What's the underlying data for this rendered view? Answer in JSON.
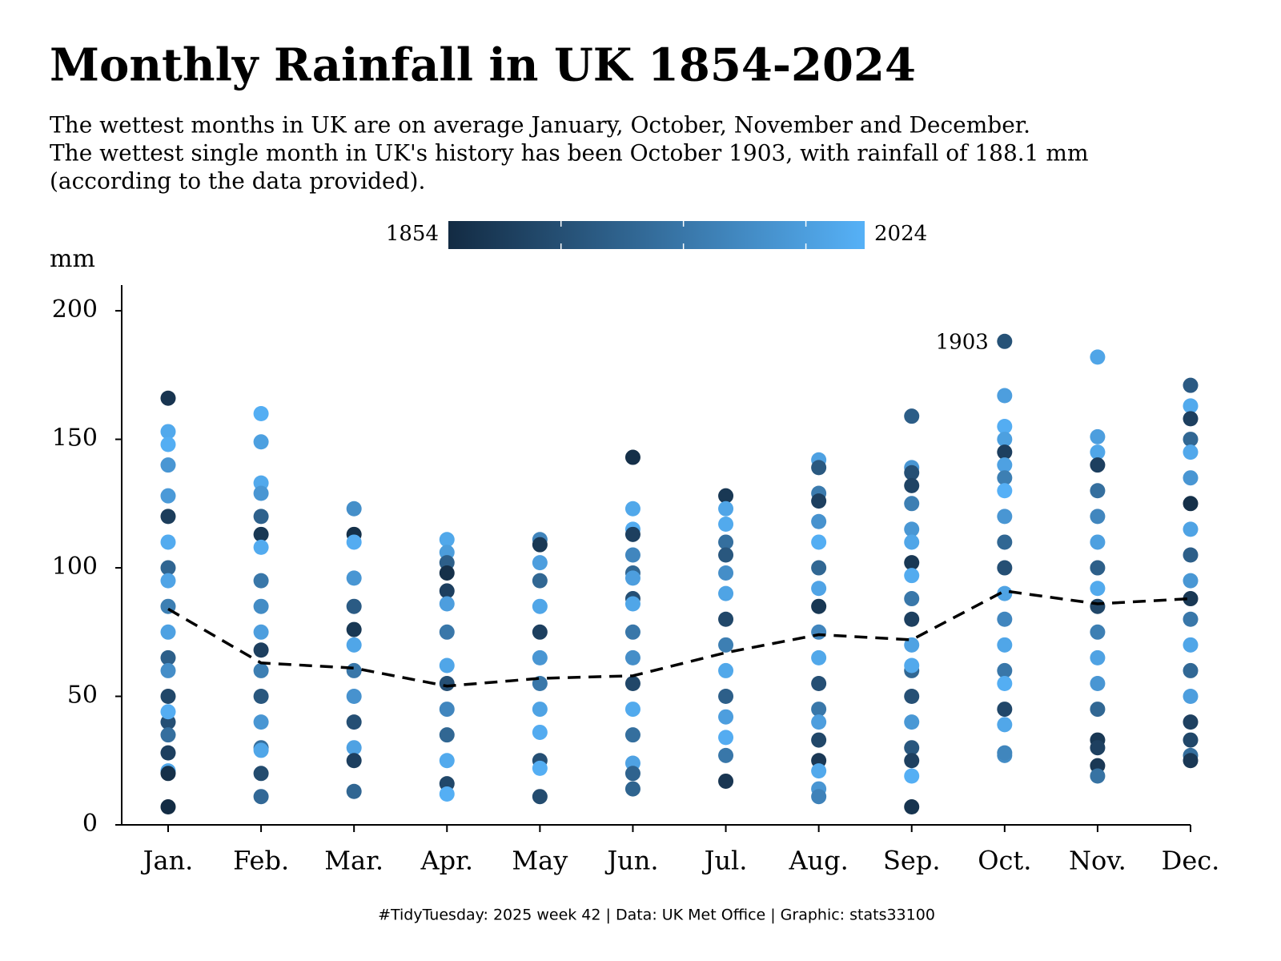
{
  "chart_data": {
    "type": "strip",
    "title": "Monthly Rainfall in UK 1854-2024",
    "subtitle": [
      "The wettest months in UK are on average January, October, November and December.",
      "The wettest single month in UK's history has been October 1903, with rainfall of 188.1 mm",
      "(according to the data provided)."
    ],
    "y_label": "mm",
    "caption": "#TidyTuesday: 2025 week 42  | Data: UK Met Office | Graphic: stats33100",
    "color_scale": {
      "min": 1854,
      "max": 2024,
      "ticks": [
        1900,
        1950,
        2000
      ],
      "colors": [
        "#132b43",
        "#56b1f7"
      ]
    },
    "categories": [
      "Jan.",
      "Feb.",
      "Mar.",
      "Apr.",
      "May",
      "Jun.",
      "Jul.",
      "Aug.",
      "Sep.",
      "Oct.",
      "Nov.",
      "Dec."
    ],
    "ylim": [
      0,
      210
    ],
    "yticks": [
      0,
      50,
      100,
      150,
      200
    ],
    "mean_values": [
      84,
      63,
      61,
      54,
      57,
      58,
      67,
      74,
      72,
      91,
      86,
      88
    ],
    "mean_line_color": "#000000",
    "annotation": {
      "label": "1903",
      "x": "Oct.",
      "y": 188.1
    },
    "points": [
      {
        "years": [
          1866,
          2014,
          2020,
          1990,
          1995,
          1877,
          2016,
          1928,
          2008,
          1960,
          2004,
          1920,
          1980,
          1890,
          1900,
          2019,
          1940,
          1880,
          2010,
          1860,
          1855
        ],
        "values": [
          166,
          153,
          148,
          140,
          128,
          120,
          110,
          100,
          95,
          85,
          75,
          65,
          60,
          50,
          40,
          44,
          35,
          28,
          21,
          20,
          7
        ]
      },
      {
        "years": [
          2020,
          2002,
          2014,
          1990,
          1923,
          1870,
          2016,
          1950,
          1977,
          2000,
          1880,
          1960,
          1910,
          1990,
          1940,
          2010,
          1895,
          1932
        ],
        "values": [
          160,
          149,
          133,
          129,
          120,
          113,
          108,
          95,
          85,
          75,
          68,
          60,
          50,
          40,
          30,
          29,
          20,
          11
        ]
      },
      {
        "years": [
          1981,
          1860,
          2018,
          1990,
          1915,
          1870,
          2010,
          1950,
          1985,
          1900,
          2005,
          1880,
          1929
        ],
        "values": [
          123,
          113,
          110,
          96,
          85,
          76,
          70,
          60,
          50,
          40,
          30,
          25,
          13
        ]
      },
      {
        "years": [
          2012,
          1998,
          1920,
          1860,
          1880,
          2000,
          1950,
          2010,
          1900,
          1970,
          1930,
          2015,
          1890,
          2021
        ],
        "values": [
          111,
          106,
          102,
          98,
          91,
          86,
          75,
          62,
          55,
          45,
          35,
          25,
          16,
          12
        ]
      },
      {
        "years": [
          1967,
          1870,
          2000,
          1930,
          2010,
          1880,
          1990,
          1950,
          2006,
          2017,
          1900,
          2020,
          1896
        ],
        "values": [
          111,
          109,
          102,
          95,
          85,
          75,
          65,
          55,
          45,
          36,
          25,
          22,
          11
        ]
      },
      {
        "years": [
          1860,
          2012,
          2016,
          1880,
          1970,
          1930,
          2000,
          1900,
          2010,
          1950,
          1980,
          1890,
          2015,
          1940,
          2005,
          1925,
          1926
        ],
        "values": [
          143,
          123,
          115,
          113,
          105,
          98,
          96,
          88,
          86,
          75,
          65,
          55,
          45,
          35,
          24,
          20,
          14
        ]
      },
      {
        "years": [
          1870,
          2009,
          2015,
          1940,
          1910,
          1980,
          2007,
          1890,
          1960,
          2012,
          1920,
          2000,
          2018,
          1950,
          1868
        ],
        "values": [
          128,
          123,
          117,
          110,
          105,
          98,
          90,
          80,
          70,
          60,
          50,
          42,
          34,
          27,
          17
        ]
      },
      {
        "years": [
          2004,
          1912,
          1955,
          1880,
          1985,
          2020,
          1930,
          2008,
          1870,
          1970,
          2012,
          1900,
          1950,
          2000,
          1890,
          1871,
          2014,
          1990,
          1965
        ],
        "values": [
          142,
          139,
          129,
          126,
          118,
          110,
          100,
          92,
          85,
          75,
          65,
          55,
          45,
          40,
          33,
          25,
          21,
          14,
          11
        ]
      },
      {
        "years": [
          1918,
          1990,
          1900,
          1885,
          1960,
          1991,
          2010,
          1870,
          2016,
          1950,
          1880,
          2005,
          1930,
          2014,
          1901,
          1992,
          1910,
          1881,
          2021,
          1865
        ],
        "values": [
          159,
          139,
          137,
          132,
          125,
          115,
          110,
          102,
          97,
          88,
          80,
          70,
          60,
          62,
          50,
          40,
          30,
          25,
          19,
          7
        ]
      },
      {
        "years": [
          1903,
          2000,
          2019,
          2002,
          1880,
          2004,
          1960,
          2023,
          1990,
          1930,
          1900,
          2006,
          1970,
          2010,
          1950,
          2020,
          1890,
          2011,
          1978,
          1969
        ],
        "values": [
          188.1,
          167,
          155,
          150,
          145,
          140,
          135,
          130,
          120,
          110,
          100,
          90,
          80,
          70,
          60,
          55,
          45,
          39,
          27,
          28
        ]
      },
      {
        "years": [
          2009,
          2000,
          2010,
          1880,
          1940,
          1970,
          2002,
          1920,
          2015,
          1890,
          1960,
          2005,
          1990,
          1930,
          1870,
          1881,
          1871,
          1945
        ],
        "values": [
          182,
          151,
          145,
          140,
          130,
          120,
          110,
          100,
          92,
          85,
          75,
          65,
          55,
          45,
          33,
          30,
          23,
          19
        ]
      },
      {
        "years": [
          1914,
          2015,
          1880,
          1930,
          2013,
          1990,
          1860,
          2006,
          1920,
          1991,
          1870,
          1950,
          2010,
          1931,
          2000,
          1881,
          1890,
          1940,
          1871
        ],
        "values": [
          171,
          163,
          158,
          150,
          145,
          135,
          125,
          115,
          105,
          95,
          88,
          80,
          70,
          60,
          50,
          40,
          33,
          27,
          25
        ]
      }
    ]
  }
}
